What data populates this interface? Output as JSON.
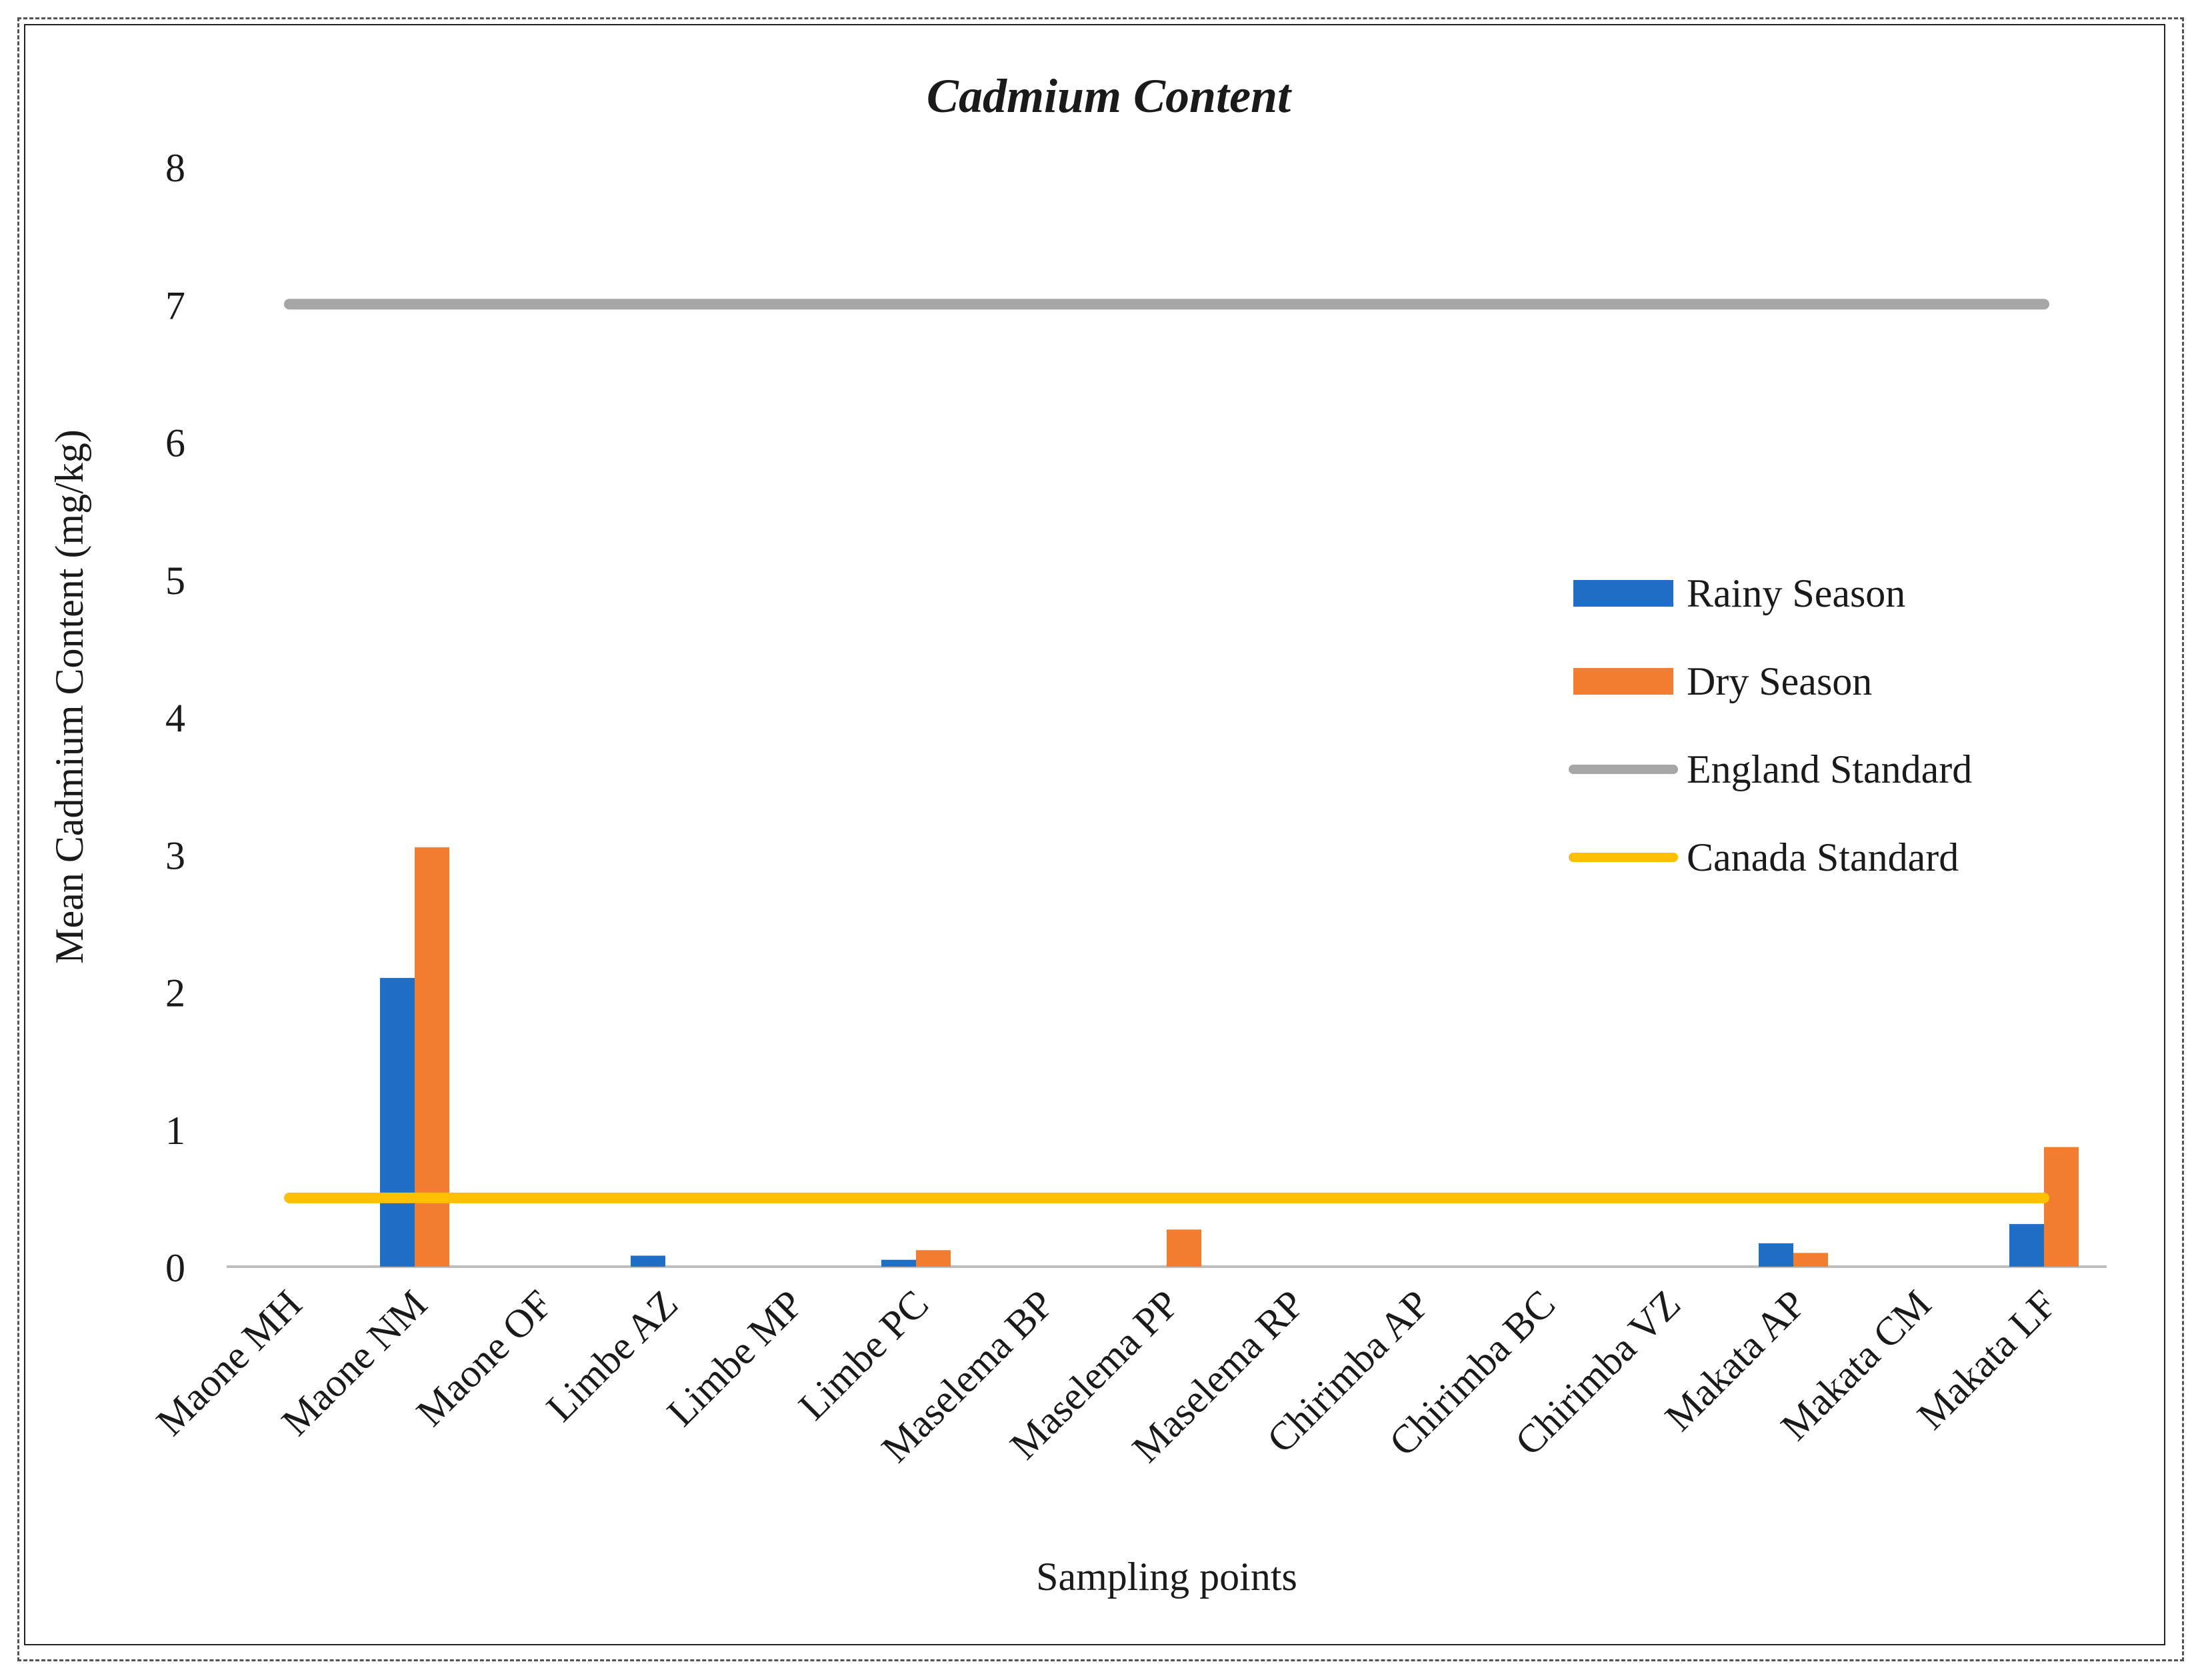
{
  "chart_data": {
    "type": "bar",
    "title": "Cadmium Content",
    "xlabel": "Sampling points",
    "ylabel": "Mean Cadmium Content (mg/kg)",
    "ylim": [
      0,
      8
    ],
    "yticks": [
      0,
      1,
      2,
      3,
      4,
      5,
      6,
      7,
      8
    ],
    "categories": [
      "Maone MH",
      "Maone NM",
      "Maone OF",
      "Limbe AZ",
      "Limbe MP",
      "Limbe PC",
      "Maselema BP",
      "Maselema PP",
      "Maselema RP",
      "Chirimba AP",
      "Chirimba BC",
      "Chirimba VZ",
      "Makata AP",
      "Makata CM",
      "Makata LF"
    ],
    "series": [
      {
        "name": "Rainy Season",
        "kind": "bar",
        "color": "#1F6FC6",
        "values": [
          0,
          2.1,
          0,
          0.08,
          0,
          0.05,
          0,
          0,
          0,
          0,
          0,
          0,
          0.17,
          0,
          0.31
        ]
      },
      {
        "name": "Dry Season",
        "kind": "bar",
        "color": "#F27D2E",
        "values": [
          0,
          3.05,
          0,
          0,
          0,
          0.12,
          0,
          0.27,
          0,
          0,
          0,
          0,
          0.1,
          0,
          0.87
        ]
      },
      {
        "name": "England Standard",
        "kind": "line",
        "color": "#A6A6A6",
        "value": 7
      },
      {
        "name": "Canada Standard",
        "kind": "line",
        "color": "#FFC000",
        "value": 0.5
      }
    ],
    "legend_position": "right"
  }
}
